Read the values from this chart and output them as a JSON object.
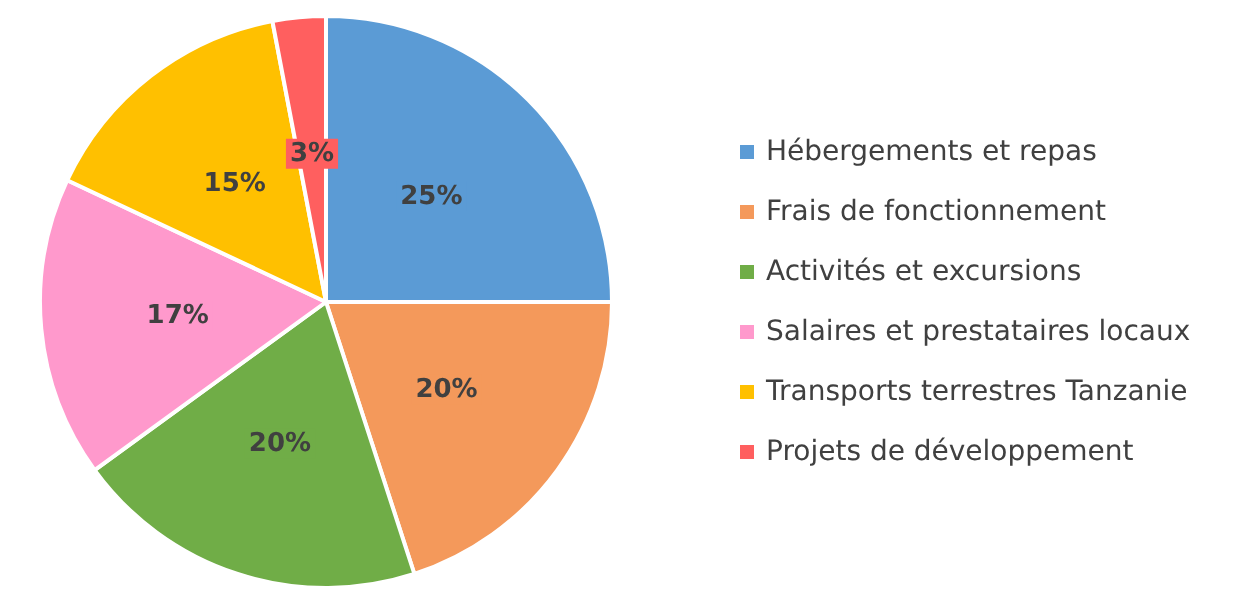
{
  "chart_data": {
    "type": "pie",
    "categories": [
      "Hébergements et repas",
      "Frais de fonctionnement",
      "Activités et excursions",
      "Salaires et prestataires locaux",
      "Transports terrestres Tanzanie",
      "Projets de développement"
    ],
    "values": [
      25,
      20,
      20,
      17,
      15,
      3
    ],
    "colors": [
      "#5b9bd5",
      "#f4995b",
      "#70ad47",
      "#ff99cc",
      "#ffc000",
      "#ff5f5f"
    ],
    "value_labels": [
      "25%",
      "20%",
      "20%",
      "17%",
      "15%",
      "3%"
    ],
    "legend": "right"
  }
}
